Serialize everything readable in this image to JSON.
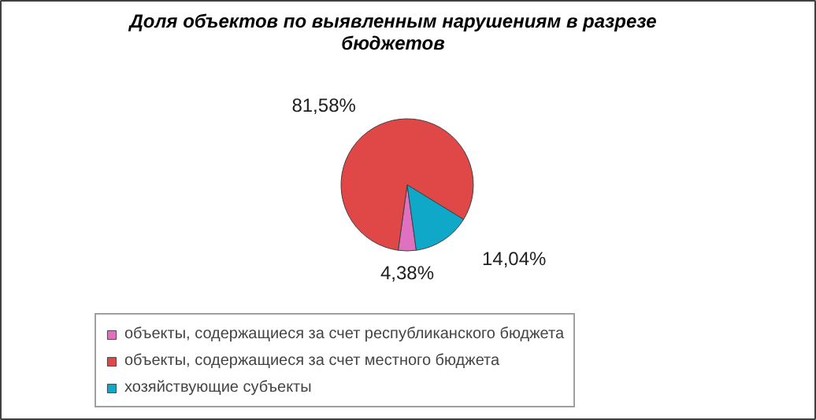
{
  "chart_data": {
    "type": "pie",
    "title": "Доля объектов по выявленным нарушениям в разрезе бюджетов",
    "categories": [
      "объекты, содержащиеся за счет республиканского бюджета",
      "объекты, содержащиеся за счет местного бюджета",
      "хозяйствующие субъекты"
    ],
    "values": [
      4.38,
      81.58,
      14.04
    ],
    "colors": [
      "#e070c0",
      "#e04848",
      "#10a8c8"
    ],
    "value_labels": [
      "4,38%",
      "81,58%",
      "14,04%"
    ],
    "legend": "bottom"
  }
}
